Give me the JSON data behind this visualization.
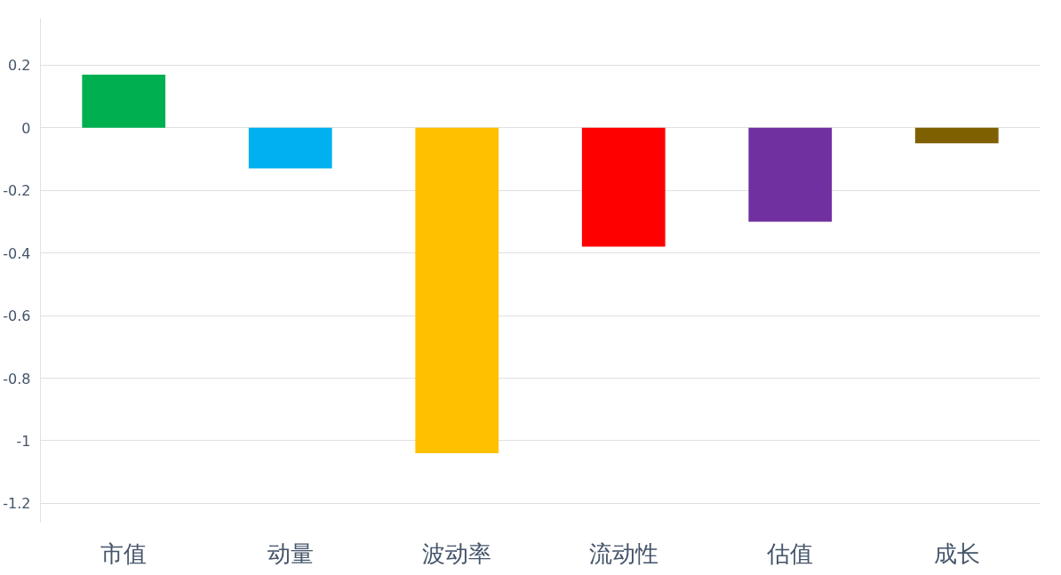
{
  "chart_data": {
    "type": "bar",
    "categories": [
      "市值",
      "动量",
      "波动率",
      "流动性",
      "估值",
      "成长"
    ],
    "values": [
      0.17,
      -0.13,
      -1.04,
      -0.38,
      -0.3,
      -0.05
    ],
    "colors": [
      "#00b050",
      "#00b0f0",
      "#ffc000",
      "#ff0000",
      "#7030a0",
      "#7f6000"
    ],
    "ylim": [
      -1.26,
      0.35
    ],
    "yticks": [
      {
        "value": 0.2,
        "label": "0.2"
      },
      0,
      {
        "value": -0.2,
        "label": "-0.2"
      },
      {
        "value": -0.4,
        "label": "-0.4"
      },
      {
        "value": -0.6,
        "label": "-0.6"
      },
      {
        "value": -0.8,
        "label": "-0.8"
      },
      {
        "value": -1,
        "label": "-1"
      },
      {
        "value": -1.2,
        "label": "-1.2"
      }
    ],
    "grid": "y"
  }
}
